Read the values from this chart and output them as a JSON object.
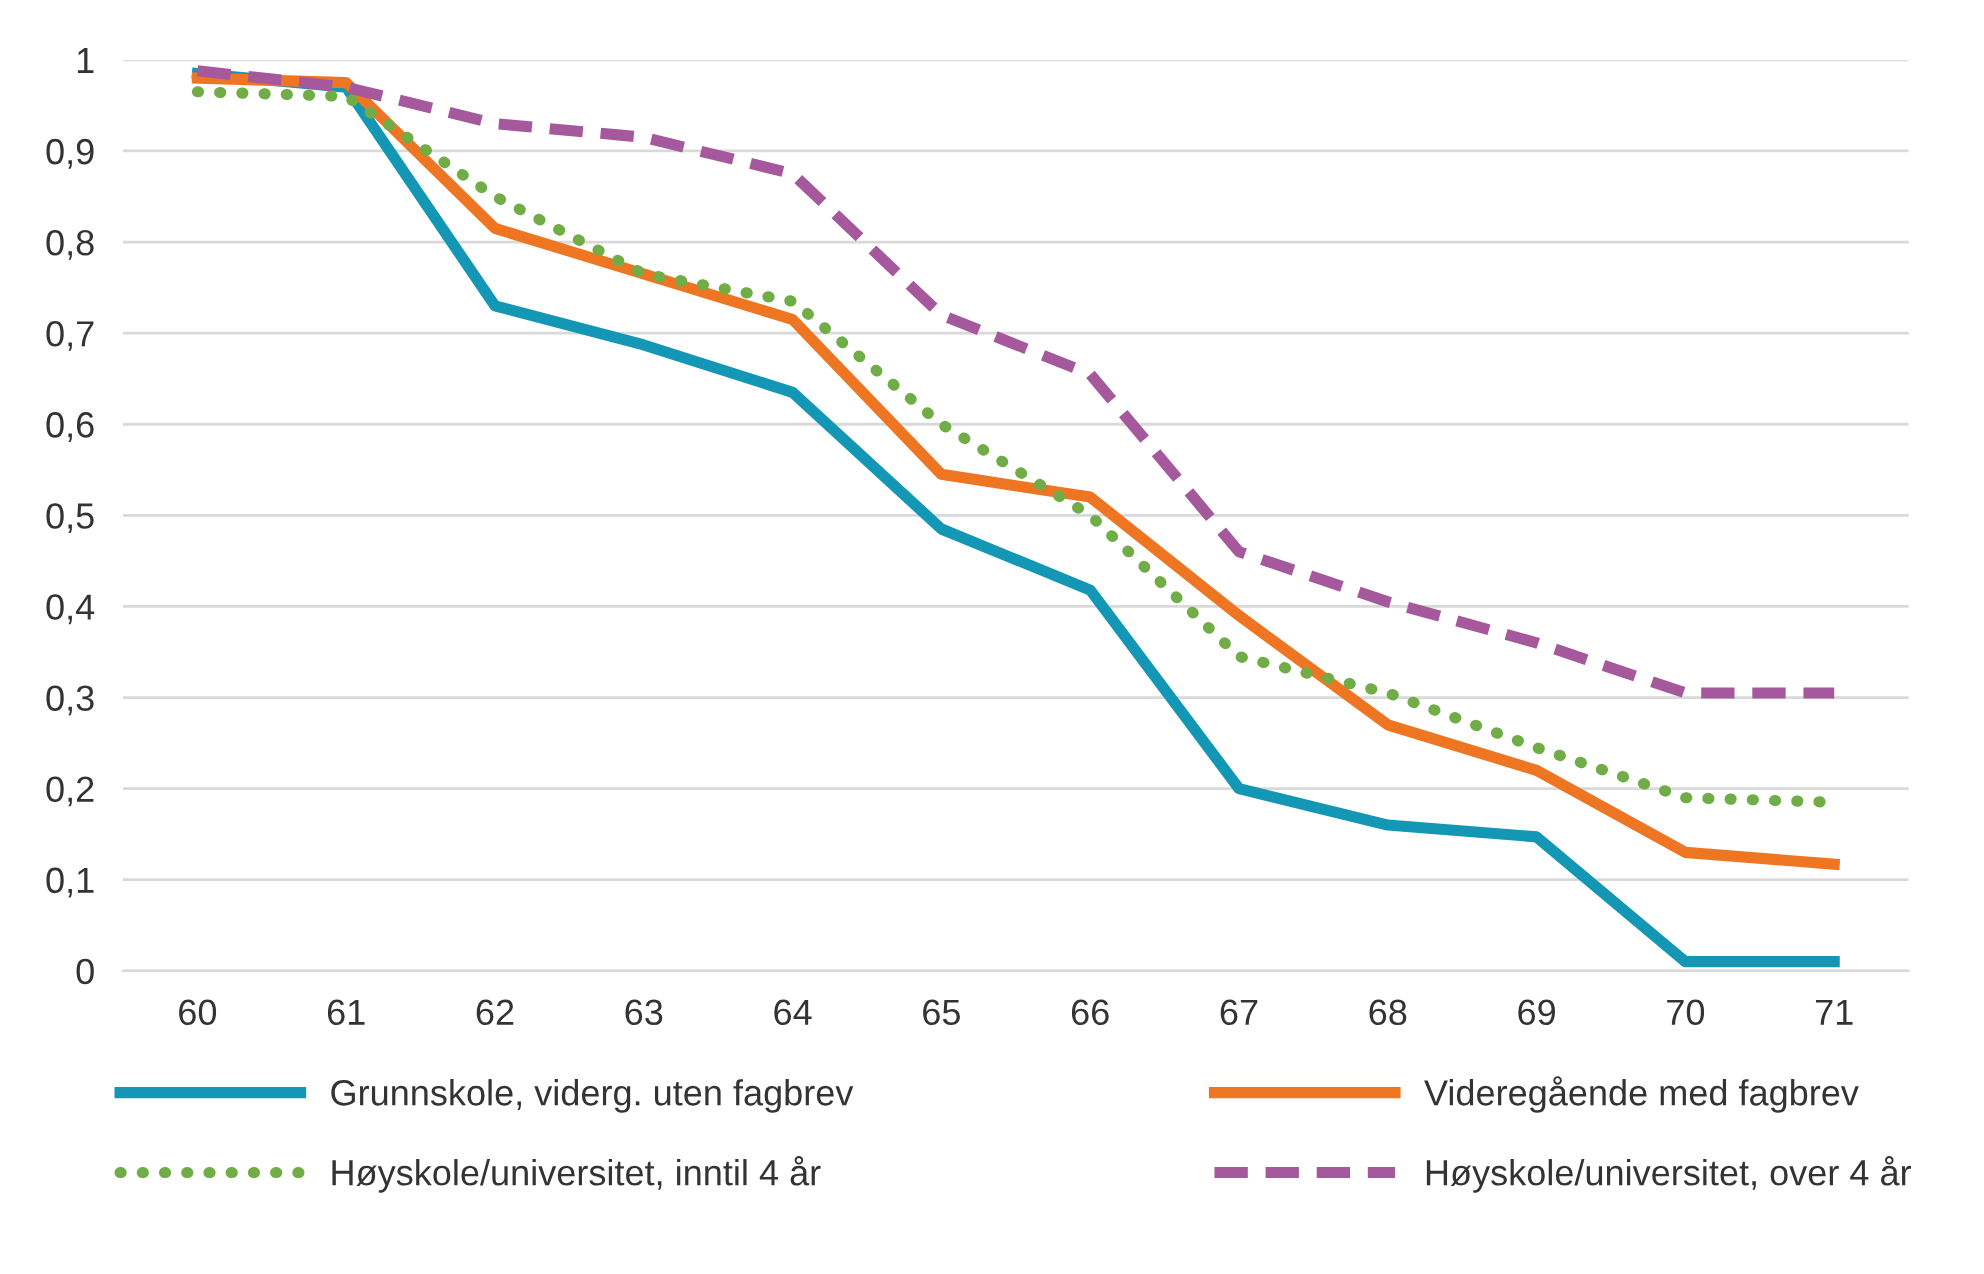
{
  "chart_data": {
    "type": "line",
    "categories": [
      "60",
      "61",
      "62",
      "63",
      "64",
      "65",
      "66",
      "67",
      "68",
      "69",
      "70",
      "71"
    ],
    "series": [
      {
        "name": "Grunnskole, viderg. uten fagbrev",
        "color": "#1497b5",
        "line_style": "solid",
        "values": [
          0.985,
          0.97,
          0.73,
          0.687,
          0.635,
          0.485,
          0.418,
          0.2,
          0.16,
          0.147,
          0.01,
          0.01
        ]
      },
      {
        "name": "Videregående med fagbrev",
        "color": "#ee7623",
        "line_style": "solid",
        "values": [
          0.98,
          0.975,
          0.815,
          0.765,
          0.715,
          0.545,
          0.52,
          0.39,
          0.27,
          0.22,
          0.13,
          0.117
        ]
      },
      {
        "name": "Høyskole/universitet, inntil 4 år",
        "color": "#70ad47",
        "line_style": "dotted",
        "values": [
          0.965,
          0.96,
          0.85,
          0.765,
          0.735,
          0.6,
          0.5,
          0.345,
          0.305,
          0.245,
          0.19,
          0.185
        ]
      },
      {
        "name": "Høyskole/universitet, over 4 år",
        "color": "#a5589b",
        "line_style": "dashed",
        "values": [
          0.988,
          0.97,
          0.93,
          0.915,
          0.875,
          0.72,
          0.655,
          0.46,
          0.405,
          0.36,
          0.305,
          0.305
        ]
      }
    ],
    "ylim": [
      0,
      1
    ],
    "yticks": [
      0,
      {
        "value": 0.1,
        "label": "0,1"
      },
      {
        "value": 0.2,
        "label": "0,2"
      },
      {
        "value": 0.3,
        "label": "0,3"
      },
      {
        "value": 0.4,
        "label": "0,4"
      },
      {
        "value": 0.5,
        "label": "0,5"
      },
      {
        "value": 0.6,
        "label": "0,6"
      },
      {
        "value": 0.7,
        "label": "0,7"
      },
      {
        "value": 0.8,
        "label": "0,8"
      },
      {
        "value": 0.9,
        "label": "0,9"
      },
      1
    ],
    "grid": "y",
    "legend": "bottom",
    "marker": "none"
  }
}
